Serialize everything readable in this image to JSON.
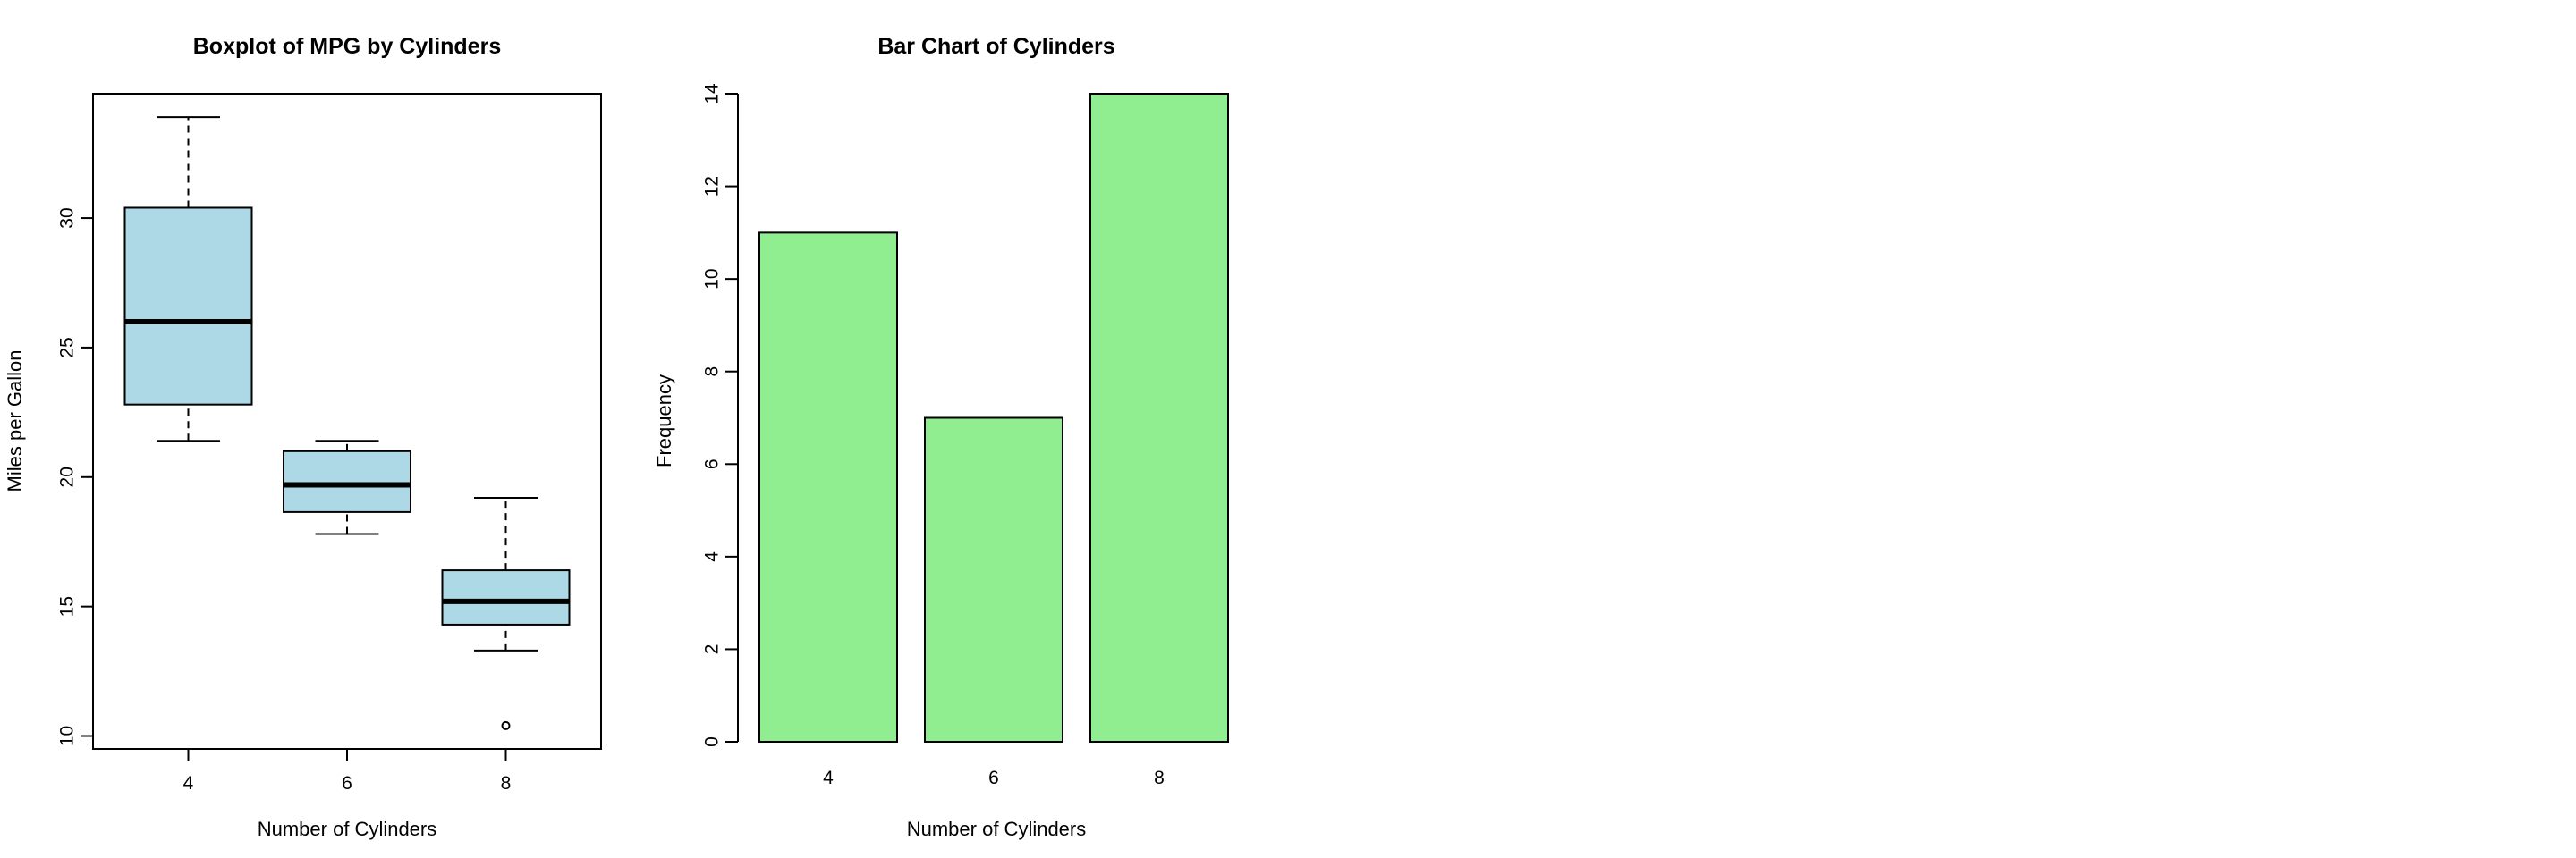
{
  "chart_data": [
    {
      "type": "boxplot",
      "title": "Boxplot of MPG by Cylinders",
      "xlabel": "Number of Cylinders",
      "ylabel": "Miles per Gallon",
      "categories": [
        "4",
        "6",
        "8"
      ],
      "ylim": [
        9.5,
        34.8
      ],
      "yticks": [
        10,
        15,
        20,
        25,
        30
      ],
      "box_color": "#add8e6",
      "boxes": [
        {
          "category": "4",
          "whisker_low": 21.4,
          "q1": 22.8,
          "median": 26.0,
          "q3": 30.4,
          "whisker_high": 33.9,
          "outliers": []
        },
        {
          "category": "6",
          "whisker_low": 17.8,
          "q1": 18.65,
          "median": 19.7,
          "q3": 21.0,
          "whisker_high": 21.4,
          "outliers": []
        },
        {
          "category": "8",
          "whisker_low": 13.3,
          "q1": 14.3,
          "median": 15.2,
          "q3": 16.4,
          "whisker_high": 19.2,
          "outliers": [
            10.4
          ]
        }
      ]
    },
    {
      "type": "bar",
      "title": "Bar Chart of Cylinders",
      "xlabel": "Number of Cylinders",
      "ylabel": "Frequency",
      "categories": [
        "4",
        "6",
        "8"
      ],
      "values": [
        11,
        7,
        14
      ],
      "ylim": [
        0,
        14
      ],
      "yticks": [
        0,
        2,
        4,
        6,
        8,
        10,
        12,
        14
      ],
      "bar_color": "#90ee90"
    }
  ]
}
